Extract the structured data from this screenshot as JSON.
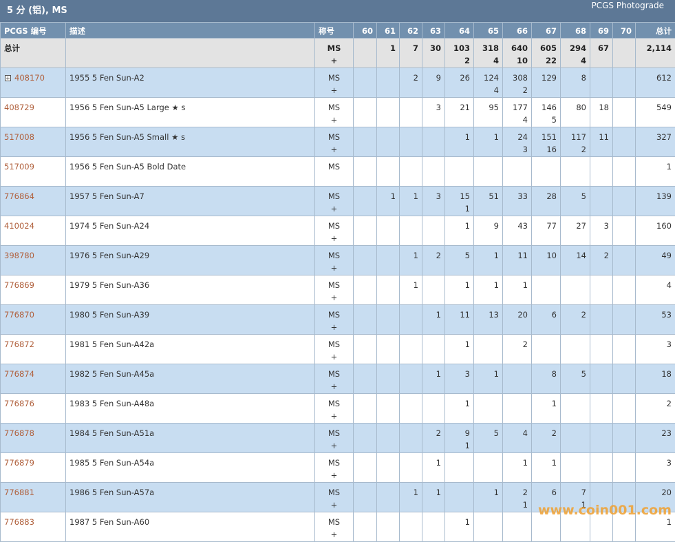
{
  "header": {
    "title": "5 分 (铝), MS",
    "link": "PCGS Photograde"
  },
  "table": {
    "columns": [
      "PCGS 编号",
      "描述",
      "称号",
      "60",
      "61",
      "62",
      "63",
      "64",
      "65",
      "66",
      "67",
      "68",
      "69",
      "70",
      "总计"
    ],
    "total_row": {
      "label": "总计",
      "designation": [
        "MS",
        "+"
      ],
      "grades": [
        null,
        [
          "1"
        ],
        [
          "7"
        ],
        [
          "30"
        ],
        [
          "103",
          "2"
        ],
        [
          "318",
          "4"
        ],
        [
          "640",
          "10"
        ],
        [
          "605",
          "22"
        ],
        [
          "294",
          "4"
        ],
        [
          "67"
        ],
        null
      ],
      "total": "2,114"
    },
    "rows": [
      {
        "id": "408170",
        "desc": "1955 5 Fen Sun-A2",
        "designation": [
          "MS",
          "+"
        ],
        "grades": [
          null,
          null,
          [
            "2"
          ],
          [
            "9"
          ],
          [
            "26"
          ],
          [
            "124",
            "4"
          ],
          [
            "308",
            "2"
          ],
          [
            "129"
          ],
          [
            "8"
          ],
          null,
          null
        ],
        "total": "612"
      },
      {
        "id": "408729",
        "desc": "1956 5 Fen Sun-A5 Large ★ s",
        "designation": [
          "MS",
          "+"
        ],
        "grades": [
          null,
          null,
          null,
          [
            "3"
          ],
          [
            "21"
          ],
          [
            "95"
          ],
          [
            "177",
            "4"
          ],
          [
            "146",
            "5"
          ],
          [
            "80"
          ],
          [
            "18"
          ],
          null
        ],
        "total": "549"
      },
      {
        "id": "517008",
        "desc": "1956 5 Fen Sun-A5 Small ★ s",
        "designation": [
          "MS",
          "+"
        ],
        "grades": [
          null,
          null,
          null,
          null,
          [
            "1"
          ],
          [
            "1"
          ],
          [
            "24",
            "3"
          ],
          [
            "151",
            "16"
          ],
          [
            "117",
            "2"
          ],
          [
            "11"
          ],
          null
        ],
        "total": "327"
      },
      {
        "id": "517009",
        "desc": "1956 5 Fen Sun-A5 Bold Date",
        "designation": [
          "MS"
        ],
        "grades": [
          null,
          null,
          null,
          null,
          null,
          null,
          null,
          null,
          null,
          null,
          null
        ],
        "total": "1"
      },
      {
        "id": "776864",
        "desc": "1957 5 Fen Sun-A7",
        "designation": [
          "MS",
          "+"
        ],
        "grades": [
          null,
          [
            "1"
          ],
          [
            "1"
          ],
          [
            "3"
          ],
          [
            "15",
            "1"
          ],
          [
            "51"
          ],
          [
            "33"
          ],
          [
            "28"
          ],
          [
            "5"
          ],
          null,
          null
        ],
        "total": "139"
      },
      {
        "id": "410024",
        "desc": "1974 5 Fen Sun-A24",
        "designation": [
          "MS",
          "+"
        ],
        "grades": [
          null,
          null,
          null,
          null,
          [
            "1"
          ],
          [
            "9"
          ],
          [
            "43"
          ],
          [
            "77"
          ],
          [
            "27"
          ],
          [
            "3"
          ],
          null
        ],
        "total": "160"
      },
      {
        "id": "398780",
        "desc": "1976 5 Fen Sun-A29",
        "designation": [
          "MS",
          "+"
        ],
        "grades": [
          null,
          null,
          [
            "1"
          ],
          [
            "2"
          ],
          [
            "5"
          ],
          [
            "1"
          ],
          [
            "11"
          ],
          [
            "10"
          ],
          [
            "14"
          ],
          [
            "2"
          ],
          null
        ],
        "total": "49"
      },
      {
        "id": "776869",
        "desc": "1979 5 Fen Sun-A36",
        "designation": [
          "MS",
          "+"
        ],
        "grades": [
          null,
          null,
          [
            "1"
          ],
          null,
          [
            "1"
          ],
          [
            "1"
          ],
          [
            "1"
          ],
          null,
          null,
          null,
          null
        ],
        "total": "4"
      },
      {
        "id": "776870",
        "desc": "1980 5 Fen Sun-A39",
        "designation": [
          "MS",
          "+"
        ],
        "grades": [
          null,
          null,
          null,
          [
            "1"
          ],
          [
            "11"
          ],
          [
            "13"
          ],
          [
            "20"
          ],
          [
            "6"
          ],
          [
            "2"
          ],
          null,
          null
        ],
        "total": "53"
      },
      {
        "id": "776872",
        "desc": "1981 5 Fen Sun-A42a",
        "designation": [
          "MS",
          "+"
        ],
        "grades": [
          null,
          null,
          null,
          null,
          [
            "1"
          ],
          null,
          [
            "2"
          ],
          null,
          null,
          null,
          null
        ],
        "total": "3"
      },
      {
        "id": "776874",
        "desc": "1982 5 Fen Sun-A45a",
        "designation": [
          "MS",
          "+"
        ],
        "grades": [
          null,
          null,
          null,
          [
            "1"
          ],
          [
            "3"
          ],
          [
            "1"
          ],
          null,
          [
            "8"
          ],
          [
            "5"
          ],
          null,
          null
        ],
        "total": "18"
      },
      {
        "id": "776876",
        "desc": "1983 5 Fen Sun-A48a",
        "designation": [
          "MS",
          "+"
        ],
        "grades": [
          null,
          null,
          null,
          null,
          [
            "1"
          ],
          null,
          null,
          [
            "1"
          ],
          null,
          null,
          null
        ],
        "total": "2"
      },
      {
        "id": "776878",
        "desc": "1984 5 Fen Sun-A51a",
        "designation": [
          "MS",
          "+"
        ],
        "grades": [
          null,
          null,
          null,
          [
            "2"
          ],
          [
            "9",
            "1"
          ],
          [
            "5"
          ],
          [
            "4"
          ],
          [
            "2"
          ],
          null,
          null,
          null
        ],
        "total": "23"
      },
      {
        "id": "776879",
        "desc": "1985 5 Fen Sun-A54a",
        "designation": [
          "MS",
          "+"
        ],
        "grades": [
          null,
          null,
          null,
          [
            "1"
          ],
          null,
          null,
          [
            "1"
          ],
          [
            "1"
          ],
          null,
          null,
          null
        ],
        "total": "3"
      },
      {
        "id": "776881",
        "desc": "1986 5 Fen Sun-A57a",
        "designation": [
          "MS",
          "+"
        ],
        "grades": [
          null,
          null,
          [
            "1"
          ],
          [
            "1"
          ],
          null,
          [
            "1"
          ],
          [
            "2",
            "1"
          ],
          [
            "6"
          ],
          [
            "7",
            "1"
          ],
          null,
          null
        ],
        "total": "20"
      },
      {
        "id": "776883",
        "desc": "1987 5 Fen Sun-A60",
        "designation": [
          "MS",
          "+"
        ],
        "grades": [
          null,
          null,
          null,
          null,
          [
            "1"
          ],
          null,
          null,
          null,
          null,
          null,
          null
        ],
        "total": "1"
      }
    ]
  },
  "watermark": "www.coin001.com"
}
